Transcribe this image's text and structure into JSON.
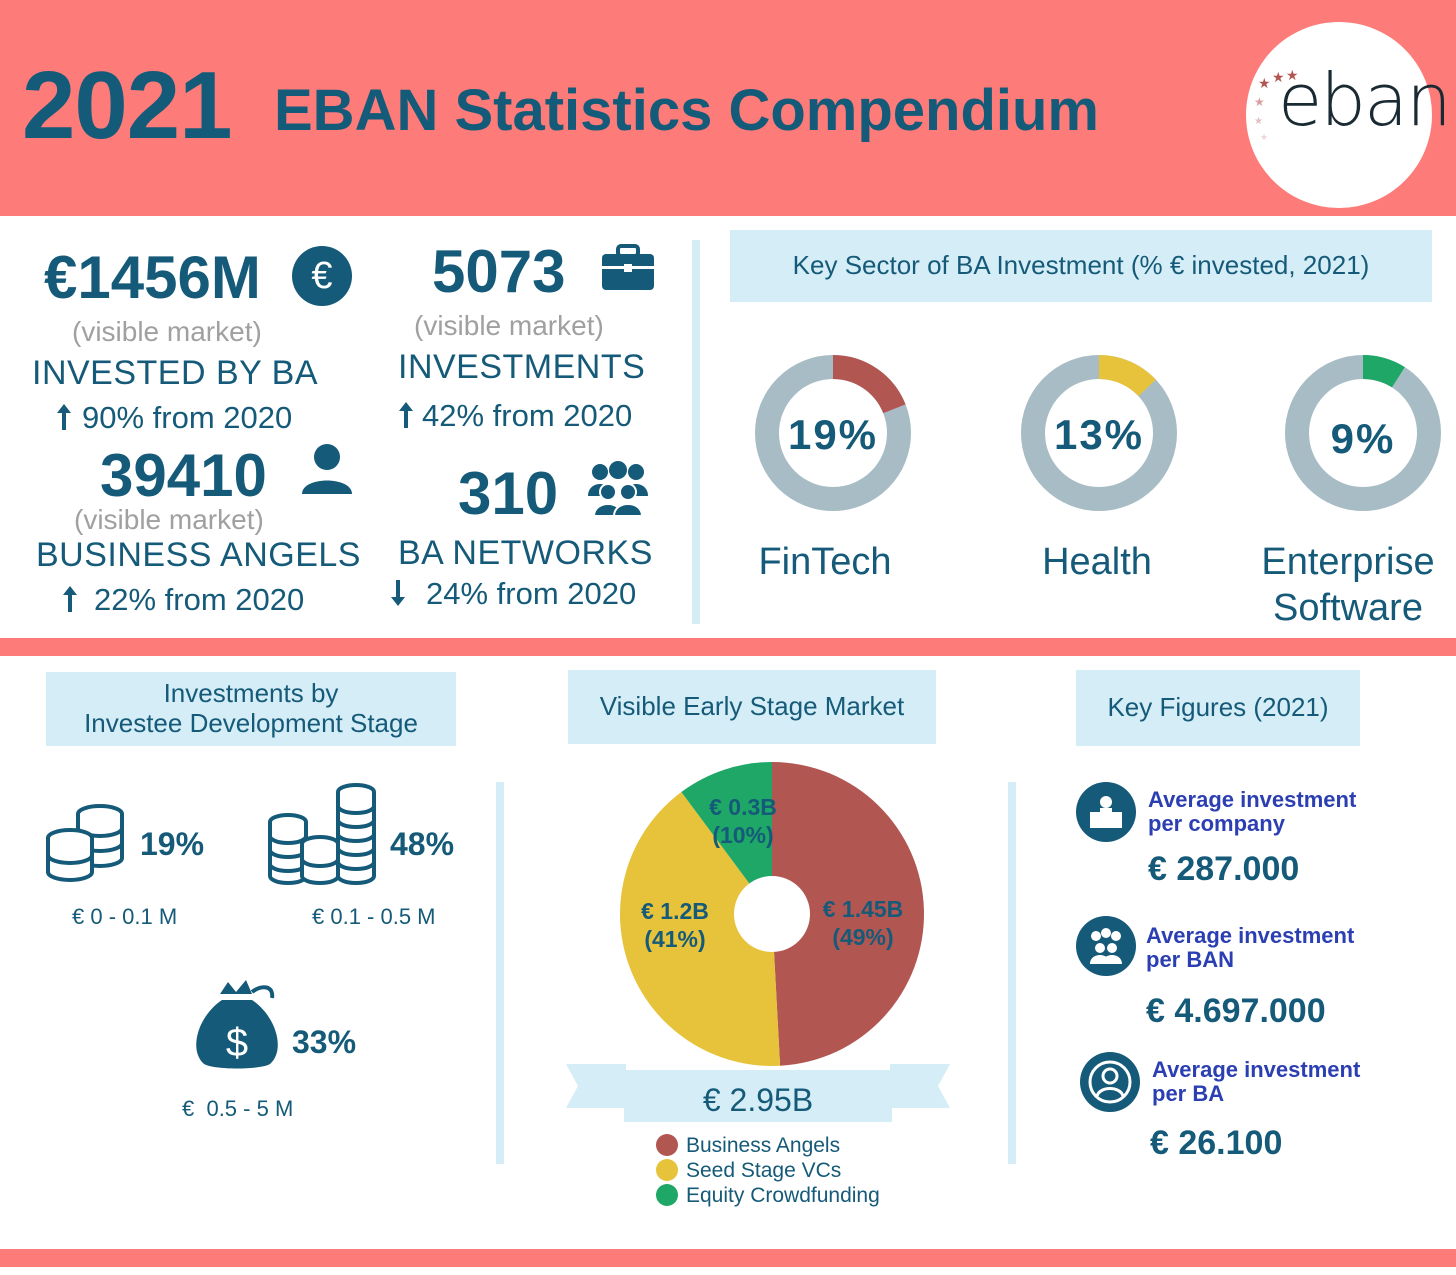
{
  "header": {
    "year": "2021",
    "title": "EBAN Statistics Compendium",
    "logo_text": "eban"
  },
  "stats": {
    "invested": {
      "value": "€1456M",
      "sub": "(visible market)",
      "caption": "INVESTED BY BA",
      "change": "90% from 2020",
      "icon": "euro-icon"
    },
    "investments": {
      "value": "5073",
      "sub": "(visible market)",
      "caption": "INVESTMENTS",
      "change": "42% from 2020",
      "icon": "briefcase-icon"
    },
    "angels": {
      "value": "39410",
      "sub": "(visible market)",
      "caption": "BUSINESS ANGELS",
      "change": "22% from 2020",
      "icon": "person-icon"
    },
    "networks": {
      "value": "310",
      "caption": "BA NETWORKS",
      "change": "24% from 2020",
      "icon": "group-icon"
    }
  },
  "sectors": {
    "title": "Key Sector of BA Investment (% € invested, 2021)",
    "items": [
      {
        "label": "FinTech",
        "pct_label": "19%",
        "pct": 19,
        "color": "#b25652"
      },
      {
        "label": "Health",
        "pct_label": "13%",
        "pct": 13,
        "color": "#e6c33a"
      },
      {
        "label_line1": "Enterprise",
        "label_line2": "Software",
        "pct_label": "9%",
        "pct": 9,
        "color": "#1ea766"
      }
    ],
    "ring_bg": "#a7bcc5"
  },
  "stages": {
    "title_line1": "Investments by",
    "title_line2": "Investee Development Stage",
    "items": [
      {
        "pct": "19%",
        "label": "€ 0 - 0.1 M"
      },
      {
        "pct": "48%",
        "label": "€ 0.1 - 0.5 M"
      },
      {
        "pct": "33%",
        "label": "€  0.5 - 5 M"
      }
    ]
  },
  "market": {
    "title": "Visible Early Stage Market",
    "total": "€ 2.95B",
    "slices": [
      {
        "name": "Business Angels",
        "value_label": "€ 1.45B",
        "pct_label": "(49%)"
      },
      {
        "name": "Seed Stage VCs",
        "value_label": "€ 1.2B",
        "pct_label": "(41%)"
      },
      {
        "name": "Equity Crowdfunding",
        "value_label": "€ 0.3B",
        "pct_label": "(10%)"
      }
    ]
  },
  "key_figures": {
    "title": "Key Figures (2021)",
    "items": [
      {
        "line1": "Average investment",
        "line2": "per company",
        "value": "€ 287.000"
      },
      {
        "line1": "Average investment",
        "line2": "per BAN",
        "value": "€ 4.697.000"
      },
      {
        "line1": "Average investment",
        "line2": "per BA",
        "value": "€ 26.100"
      }
    ]
  },
  "chart_data": [
    {
      "type": "pie",
      "title": "Key Sector of BA Investment (% € invested, 2021)",
      "categories": [
        "FinTech",
        "Health",
        "Enterprise Software"
      ],
      "values": [
        19,
        13,
        9
      ],
      "colors": [
        "#b25652",
        "#e6c33a",
        "#1ea766"
      ]
    },
    {
      "type": "pie",
      "title": "Visible Early Stage Market",
      "categories": [
        "Business Angels",
        "Seed Stage VCs",
        "Equity Crowdfunding"
      ],
      "values": [
        1.45,
        1.2,
        0.3
      ],
      "percent": [
        49,
        41,
        10
      ],
      "colors": [
        "#b25652",
        "#e6c33a",
        "#1ea766"
      ],
      "total_label": "€ 2.95B"
    },
    {
      "type": "table",
      "title": "Investments by Investee Development Stage",
      "categories": [
        "€ 0 - 0.1 M",
        "€ 0.1 - 0.5 M",
        "€ 0.5 - 5 M"
      ],
      "values": [
        19,
        48,
        33
      ]
    }
  ]
}
